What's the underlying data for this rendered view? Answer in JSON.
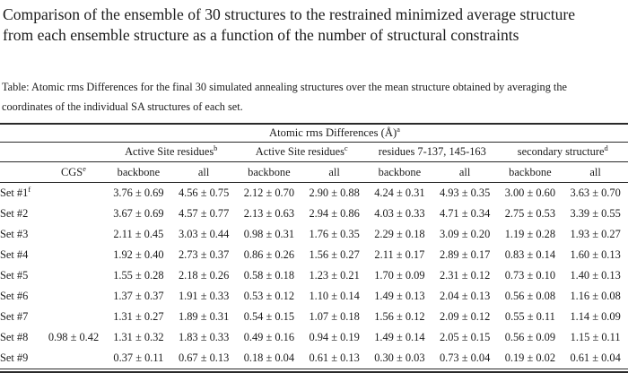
{
  "title": {
    "line1": "Comparison of the ensemble of 30 structures to the restrained minimized average structure",
    "line2": "from each ensemble structure as a function of the number of structural constraints"
  },
  "caption": {
    "line1": "Table: Atomic rms Differences for the final 30 simulated annealing structures over the mean structure obtained by averaging  the",
    "line2": "coordinates of the individual SA structures of each set."
  },
  "table": {
    "unit_header": {
      "text": "Atomic rms Differences (Å)",
      "sup": "a"
    },
    "group_headers": [
      {
        "text": "Active Site residues",
        "sup": "b"
      },
      {
        "text": "Active Site residues",
        "sup": "c"
      },
      {
        "text": "residues 7-137, 145-163",
        "sup": ""
      },
      {
        "text": "secondary structure",
        "sup": "d"
      }
    ],
    "column_headers": [
      {
        "text": "CGS",
        "sup": "e"
      },
      {
        "text": "backbone"
      },
      {
        "text": "all"
      },
      {
        "text": "backbone"
      },
      {
        "text": "all"
      },
      {
        "text": "backbone"
      },
      {
        "text": "all"
      },
      {
        "text": "backbone"
      },
      {
        "text": "all"
      }
    ],
    "rows": [
      {
        "label": "Set #1",
        "sup": "f",
        "cgs": "",
        "values": [
          "3.76 ± 0.69",
          "4.56 ± 0.75",
          "2.12 ± 0.70",
          "2.90 ± 0.88",
          "4.24 ± 0.31",
          "4.93 ± 0.35",
          "3.00 ± 0.60",
          "3.63 ± 0.70"
        ]
      },
      {
        "label": "Set #2",
        "cgs": "",
        "values": [
          "3.67 ± 0.69",
          "4.57 ± 0.77",
          "2.13 ± 0.63",
          "2.94 ± 0.86",
          "4.03 ± 0.33",
          "4.71 ± 0.34",
          "2.75 ± 0.53",
          "3.39 ± 0.55"
        ]
      },
      {
        "label": "Set #3",
        "cgs": "",
        "values": [
          "2.11 ± 0.45",
          "3.03 ± 0.44",
          "0.98 ± 0.31",
          "1.76 ± 0.35",
          "2.29 ± 0.18",
          "3.09 ± 0.20",
          "1.19 ± 0.28",
          "1.93 ± 0.27"
        ]
      },
      {
        "label": "Set #4",
        "cgs": "",
        "values": [
          "1.92 ± 0.40",
          "2.73 ± 0.37",
          "0.86 ± 0.26",
          "1.56 ± 0.27",
          "2.11 ± 0.17",
          "2.89 ± 0.17",
          "0.83 ± 0.14",
          "1.60 ± 0.13"
        ]
      },
      {
        "label": "Set #5",
        "cgs": "",
        "values": [
          "1.55 ± 0.28",
          "2.18 ± 0.26",
          "0.58 ± 0.18",
          "1.23 ± 0.21",
          "1.70 ± 0.09",
          "2.31 ± 0.12",
          "0.73 ± 0.10",
          "1.40 ± 0.13"
        ]
      },
      {
        "label": "Set #6",
        "cgs": "",
        "values": [
          "1.37 ± 0.37",
          "1.91 ± 0.33",
          "0.53 ± 0.12",
          "1.10 ± 0.14",
          "1.49 ± 0.13",
          "2.04 ± 0.13",
          "0.56 ± 0.08",
          "1.16 ± 0.08"
        ]
      },
      {
        "label": "Set #7",
        "cgs": "",
        "values": [
          "1.31 ± 0.27",
          "1.89 ± 0.31",
          "0.54 ± 0.15",
          "1.07 ± 0.18",
          "1.56 ± 0.12",
          "2.09 ± 0.12",
          "0.55 ± 0.11",
          "1.14 ± 0.09"
        ]
      },
      {
        "label": "Set #8",
        "cgs": "0.98 ± 0.42",
        "values": [
          "1.31 ± 0.32",
          "1.83 ± 0.33",
          "0.49 ± 0.16",
          "0.94 ± 0.19",
          "1.49 ± 0.14",
          "2.05 ± 0.15",
          "0.56 ± 0.09",
          "1.15 ± 0.11"
        ]
      },
      {
        "label": "Set #9",
        "cgs": "",
        "values": [
          "0.37 ± 0.11",
          "0.67 ± 0.13",
          "0.18 ± 0.04",
          "0.61 ± 0.13",
          "0.30 ± 0.03",
          "0.73 ± 0.04",
          "0.19 ± 0.02",
          "0.61 ± 0.04"
        ]
      }
    ]
  }
}
